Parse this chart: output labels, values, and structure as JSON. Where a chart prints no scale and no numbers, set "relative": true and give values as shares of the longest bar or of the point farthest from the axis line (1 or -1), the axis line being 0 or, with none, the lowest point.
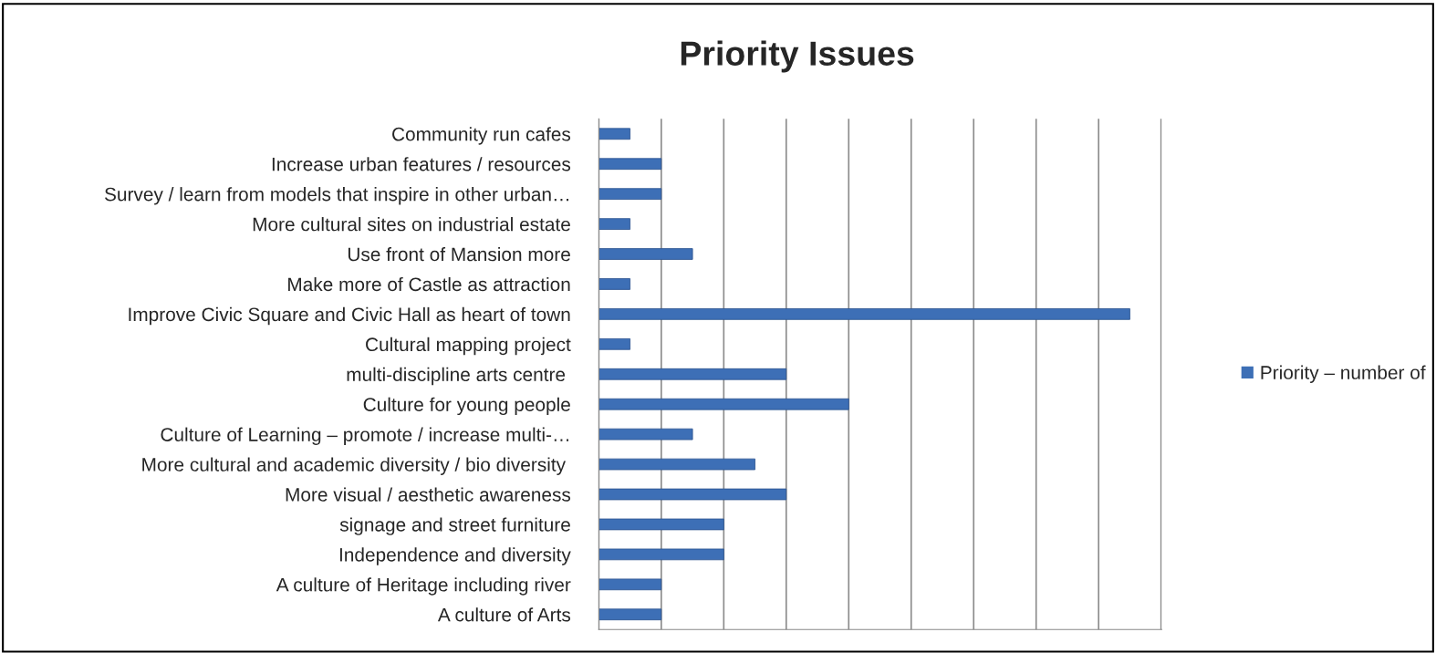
{
  "chart_data": {
    "type": "bar",
    "orientation": "horizontal",
    "relative": true,
    "title": "Priority Issues",
    "categories": [
      "Community run cafes",
      "Increase urban features / resources",
      "Survey / learn from models that inspire in other urban…",
      "More cultural sites on industrial estate",
      "Use front of Mansion more",
      "Make more of Castle as attraction",
      "Improve Civic Square and Civic Hall as heart of town",
      "Cultural mapping project",
      "multi-discipline arts centre ",
      "Culture for young people",
      "Culture of Learning – promote / increase multi-…",
      "More cultural and academic diversity / bio diversity ",
      "More visual / aesthetic awareness",
      "signage and street furniture",
      "Independence and diversity",
      "A culture of Heritage including river",
      "A culture of Arts"
    ],
    "series": [
      {
        "name": "Priority – number of",
        "color": "#3d6fb6",
        "values": [
          0.0588,
          0.1176,
          0.1176,
          0.0588,
          0.1765,
          0.0588,
          1,
          0.0588,
          0.3529,
          0.4706,
          0.1765,
          0.2941,
          0.3529,
          0.2353,
          0.2353,
          0.1176,
          0.1176
        ]
      }
    ],
    "grid": "x",
    "legend": "right"
  }
}
